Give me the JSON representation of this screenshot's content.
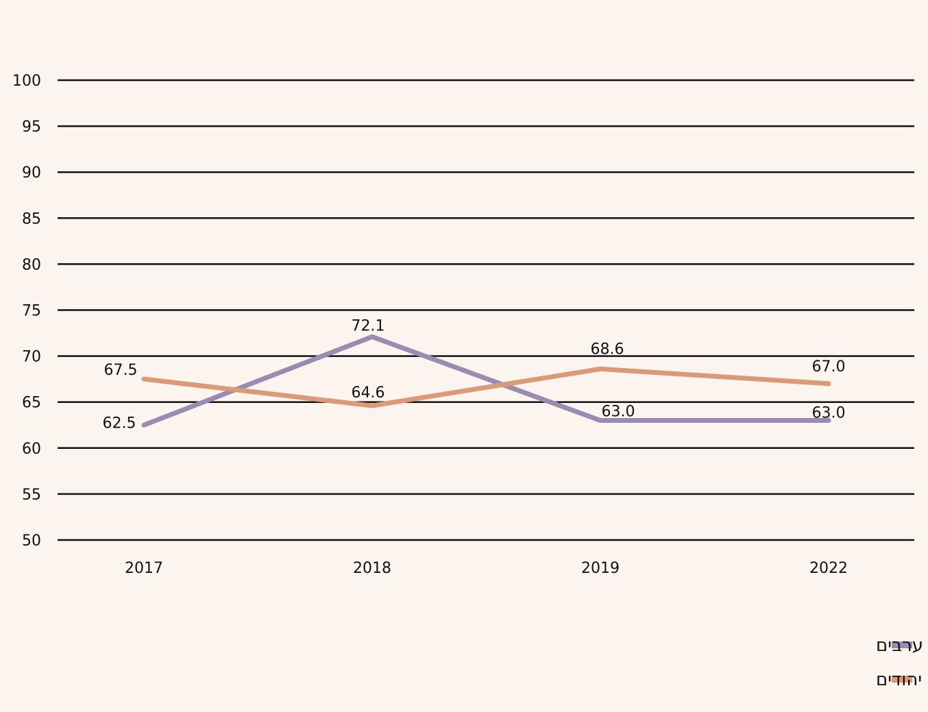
{
  "chart_data": {
    "type": "line",
    "categories": [
      "2017",
      "2018",
      "2019",
      "2022"
    ],
    "ylim": [
      50,
      100
    ],
    "yticks": [
      50,
      55,
      60,
      65,
      70,
      75,
      80,
      85,
      90,
      95,
      100
    ],
    "grid": true,
    "legend_position": "bottom-right",
    "series": [
      {
        "name": "ערבים",
        "color": "#9a8bb0",
        "values": [
          62.5,
          72.1,
          63.0,
          63.0
        ],
        "labels": [
          "62.5",
          "72.1",
          "63.0",
          "63.0"
        ]
      },
      {
        "name": "יהודים",
        "color": "#db9a76",
        "values": [
          67.5,
          64.6,
          68.6,
          67.0
        ],
        "labels": [
          "67.5",
          "64.6",
          "68.6",
          "67.0"
        ]
      }
    ]
  }
}
